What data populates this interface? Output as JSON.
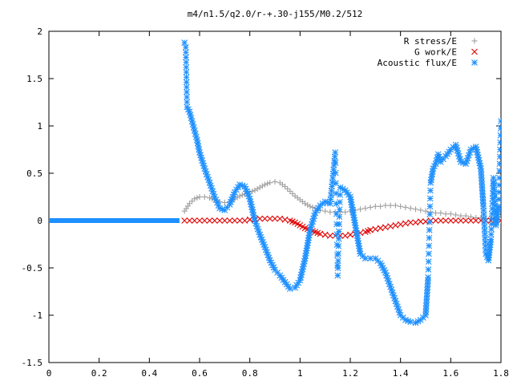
{
  "chart_data": {
    "type": "scatter",
    "title": "m4/n1.5/q2.0/r-+.30-j155/M0.2/512",
    "xlabel": "",
    "ylabel": "",
    "xlim": [
      0,
      1.8
    ],
    "ylim": [
      -1.5,
      2
    ],
    "x_ticks": [
      0,
      0.2,
      0.4,
      0.6,
      0.8,
      1,
      1.2,
      1.4,
      1.6,
      1.8
    ],
    "x_tick_labels": [
      "0",
      "0.2",
      "0.4",
      "0.6",
      "0.8",
      "1",
      "1.2",
      "1.4",
      "1.6",
      "1.8"
    ],
    "y_ticks": [
      -1.5,
      -1,
      -0.5,
      0,
      0.5,
      1,
      1.5,
      2
    ],
    "y_tick_labels": [
      "-1.5",
      "-1",
      "-0.5",
      "0",
      "0.5",
      "1",
      "1.5",
      "2"
    ],
    "grid": false,
    "legend_position": "top-right",
    "series": [
      {
        "name": "R stress/E",
        "marker": "plus",
        "color": "#a0a0a0",
        "x": [
          0.54,
          0.56,
          0.58,
          0.6,
          0.62,
          0.64,
          0.66,
          0.68,
          0.7,
          0.72,
          0.74,
          0.76,
          0.78,
          0.8,
          0.82,
          0.84,
          0.86,
          0.88,
          0.9,
          0.92,
          0.94,
          0.96,
          0.98,
          1.0,
          1.02,
          1.04,
          1.06,
          1.08,
          1.1,
          1.12,
          1.14,
          1.16,
          1.18,
          1.2,
          1.22,
          1.24,
          1.26,
          1.28,
          1.3,
          1.32,
          1.34,
          1.36,
          1.38,
          1.4,
          1.42,
          1.44,
          1.46,
          1.48,
          1.5,
          1.52,
          1.54,
          1.56,
          1.58,
          1.6,
          1.62,
          1.64,
          1.66,
          1.68,
          1.7,
          1.72,
          1.74,
          1.76,
          1.78,
          1.8
        ],
        "y": [
          0.1,
          0.18,
          0.23,
          0.25,
          0.25,
          0.24,
          0.22,
          0.2,
          0.19,
          0.2,
          0.23,
          0.26,
          0.28,
          0.3,
          0.32,
          0.35,
          0.38,
          0.4,
          0.41,
          0.4,
          0.36,
          0.31,
          0.26,
          0.22,
          0.18,
          0.15,
          0.13,
          0.11,
          0.1,
          0.09,
          0.09,
          0.09,
          0.09,
          0.1,
          0.11,
          0.12,
          0.13,
          0.14,
          0.15,
          0.15,
          0.16,
          0.16,
          0.16,
          0.15,
          0.14,
          0.13,
          0.12,
          0.11,
          0.1,
          0.09,
          0.08,
          0.08,
          0.07,
          0.07,
          0.06,
          0.05,
          0.05,
          0.04,
          0.03,
          0.03,
          0.02,
          0.02,
          0.01,
          0.0
        ]
      },
      {
        "name": "G work/E",
        "marker": "cross",
        "color": "#e00000",
        "x": [
          0.54,
          0.56,
          0.58,
          0.6,
          0.62,
          0.64,
          0.66,
          0.68,
          0.7,
          0.72,
          0.74,
          0.76,
          0.78,
          0.8,
          0.82,
          0.84,
          0.86,
          0.88,
          0.9,
          0.92,
          0.94,
          0.96,
          0.98,
          1.0,
          1.02,
          1.04,
          1.06,
          1.08,
          1.1,
          1.12,
          1.14,
          1.16,
          1.18,
          1.2,
          1.22,
          1.24,
          1.26,
          1.28,
          1.3,
          1.32,
          1.34,
          1.36,
          1.38,
          1.4,
          1.42,
          1.44,
          1.46,
          1.48,
          1.5,
          1.52,
          1.54,
          1.56,
          1.58,
          1.6,
          1.62,
          1.64,
          1.66,
          1.68,
          1.7,
          1.72,
          1.74,
          1.76,
          1.78,
          1.8
        ],
        "y": [
          0.0,
          0.0,
          0.0,
          0.0,
          0.0,
          0.0,
          0.0,
          0.0,
          0.0,
          0.0,
          0.0,
          0.0,
          0.0,
          0.01,
          0.01,
          0.02,
          0.02,
          0.02,
          0.02,
          0.02,
          0.01,
          0.0,
          -0.02,
          -0.05,
          -0.08,
          -0.1,
          -0.12,
          -0.14,
          -0.15,
          -0.16,
          -0.16,
          -0.16,
          -0.16,
          -0.15,
          -0.14,
          -0.13,
          -0.12,
          -0.1,
          -0.09,
          -0.08,
          -0.07,
          -0.06,
          -0.05,
          -0.04,
          -0.03,
          -0.02,
          -0.02,
          -0.01,
          -0.01,
          0.0,
          0.0,
          0.0,
          0.0,
          0.0,
          0.0,
          0.0,
          0.0,
          0.0,
          0.0,
          0.0,
          0.0,
          0.0,
          0.0,
          0.0
        ]
      },
      {
        "name": "Acoustic flux/E",
        "marker": "star",
        "color": "#1e90ff",
        "x": [
          0.0,
          0.04,
          0.08,
          0.12,
          0.16,
          0.2,
          0.24,
          0.28,
          0.32,
          0.36,
          0.4,
          0.44,
          0.48,
          0.52,
          0.54,
          0.545,
          0.55,
          0.56,
          0.57,
          0.58,
          0.59,
          0.6,
          0.62,
          0.64,
          0.66,
          0.68,
          0.7,
          0.72,
          0.74,
          0.76,
          0.78,
          0.8,
          0.82,
          0.84,
          0.86,
          0.88,
          0.9,
          0.92,
          0.94,
          0.96,
          0.98,
          1.0,
          1.02,
          1.04,
          1.06,
          1.08,
          1.1,
          1.12,
          1.14,
          1.15,
          1.16,
          1.18,
          1.2,
          1.22,
          1.24,
          1.26,
          1.28,
          1.3,
          1.32,
          1.34,
          1.36,
          1.38,
          1.4,
          1.42,
          1.44,
          1.46,
          1.48,
          1.5,
          1.51,
          1.52,
          1.53,
          1.54,
          1.55,
          1.56,
          1.58,
          1.6,
          1.62,
          1.64,
          1.66,
          1.68,
          1.7,
          1.72,
          1.73,
          1.74,
          1.75,
          1.76,
          1.77,
          1.78,
          1.79,
          1.8
        ],
        "y": [
          0.0,
          0.0,
          0.0,
          0.0,
          0.0,
          0.0,
          0.0,
          0.0,
          0.0,
          0.0,
          0.0,
          0.0,
          0.0,
          0.0,
          1.88,
          1.83,
          1.2,
          1.15,
          1.05,
          0.95,
          0.85,
          0.72,
          0.55,
          0.4,
          0.25,
          0.13,
          0.11,
          0.17,
          0.3,
          0.38,
          0.36,
          0.23,
          0.0,
          -0.15,
          -0.28,
          -0.42,
          -0.52,
          -0.58,
          -0.65,
          -0.72,
          -0.71,
          -0.63,
          -0.4,
          -0.1,
          0.08,
          0.16,
          0.2,
          0.18,
          0.72,
          -0.58,
          0.35,
          0.32,
          0.25,
          -0.05,
          -0.35,
          -0.4,
          -0.4,
          -0.4,
          -0.45,
          -0.55,
          -0.7,
          -0.85,
          -1.0,
          -1.05,
          -1.07,
          -1.08,
          -1.05,
          -1.0,
          -0.6,
          0.4,
          0.55,
          0.6,
          0.7,
          0.62,
          0.68,
          0.75,
          0.8,
          0.62,
          0.6,
          0.75,
          0.78,
          0.55,
          0.15,
          -0.35,
          -0.42,
          -0.2,
          0.45,
          -0.05,
          0.15,
          1.05
        ]
      }
    ]
  }
}
